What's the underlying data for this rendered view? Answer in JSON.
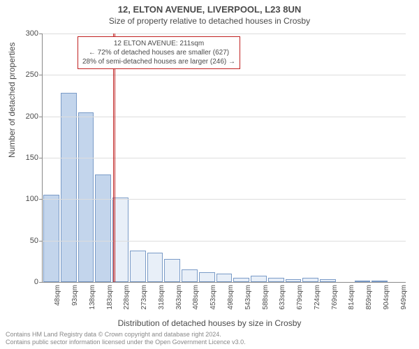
{
  "title_main": "12, ELTON AVENUE, LIVERPOOL, L23 8UN",
  "title_sub": "Size of property relative to detached houses in Crosby",
  "y_axis_label": "Number of detached properties",
  "x_axis_label": "Distribution of detached houses by size in Crosby",
  "footer_line1": "Contains HM Land Registry data © Crown copyright and database right 2024.",
  "footer_line2": "Contains public sector information licensed under the Open Government Licence v3.0.",
  "chart": {
    "type": "bar",
    "ylim": [
      0,
      300
    ],
    "ytick_step": 50,
    "y_ticks": [
      0,
      50,
      100,
      150,
      200,
      250,
      300
    ],
    "background_color": "#ffffff",
    "grid_color": "#dddddd",
    "axis_color": "#888888",
    "bar_fill_smaller": "#c3d5ec",
    "bar_fill_larger": "#e8eff8",
    "bar_border": "#7a9bc7",
    "marker_color": "#c02020",
    "marker_x_value": 211,
    "bar_width_ratio": 0.92,
    "categories": [
      "48sqm",
      "93sqm",
      "138sqm",
      "183sqm",
      "228sqm",
      "273sqm",
      "318sqm",
      "363sqm",
      "408sqm",
      "453sqm",
      "498sqm",
      "543sqm",
      "588sqm",
      "633sqm",
      "679sqm",
      "724sqm",
      "769sqm",
      "814sqm",
      "859sqm",
      "904sqm",
      "949sqm"
    ],
    "values": [
      105,
      228,
      205,
      130,
      102,
      38,
      35,
      28,
      15,
      12,
      10,
      5,
      8,
      5,
      3,
      5,
      3,
      0,
      2,
      2,
      0
    ],
    "smaller_cutoff_index": 4
  },
  "callout": {
    "line1": "12 ELTON AVENUE: 211sqm",
    "line2": "← 72% of detached houses are smaller (627)",
    "line3": "28% of semi-detached houses are larger (246) →"
  }
}
